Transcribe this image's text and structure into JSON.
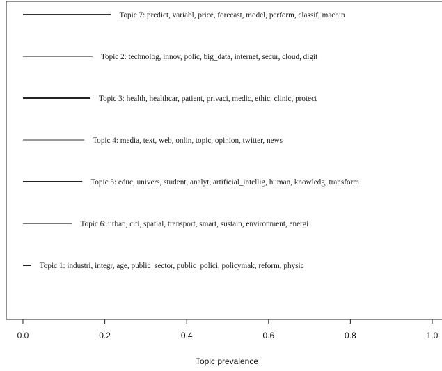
{
  "chart_data": {
    "type": "bar",
    "orientation": "horizontal",
    "title": "",
    "xlabel": "Topic prevalence",
    "ylabel": "",
    "xlim": [
      0.0,
      1.0
    ],
    "xticks": [
      "0.0",
      "0.2",
      "0.4",
      "0.6",
      "0.8",
      "1.0"
    ],
    "grid": false,
    "legend": "none",
    "topics": [
      {
        "label": "Topic 7: predict, variabl, price, forecast, model, perform, classif, machin",
        "value": 0.215,
        "color": "#333333"
      },
      {
        "label": "Topic 2: technolog, innov, polic, big_data, internet, secur, cloud, digit",
        "value": 0.17,
        "color": "#888888"
      },
      {
        "label": "Topic 3: health, healthcar, patient, privaci, medic, ethic, clinic, protect",
        "value": 0.165,
        "color": "#222222"
      },
      {
        "label": "Topic 4: media, text, web, onlin, topic, opinion, twitter, news",
        "value": 0.15,
        "color": "#999999"
      },
      {
        "label": "Topic 5: educ, univers, student, analyt, artificial_intellig, human, knowledg, transform",
        "value": 0.145,
        "color": "#222222"
      },
      {
        "label": "Topic 6: urban, citi, spatial, transport, smart, sustain, environment, energi",
        "value": 0.12,
        "color": "#777777"
      },
      {
        "label": "Topic 1: industri, integr, age, public_sector, public_polici, policymak, reform, physic",
        "value": 0.02,
        "color": "#222222"
      }
    ]
  }
}
